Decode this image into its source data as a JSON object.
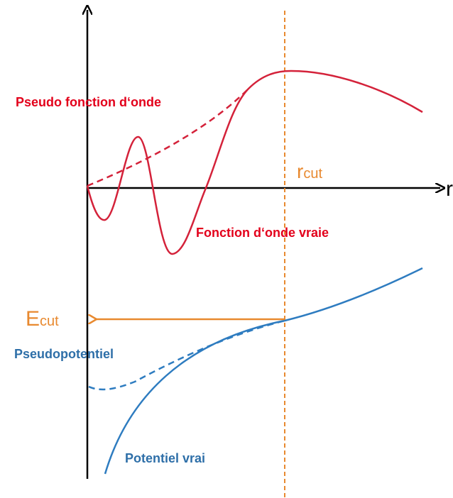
{
  "labels": {
    "pseudo_wave": "Pseudo fonction d‘onde",
    "true_wave": "Fonction d‘onde vraie",
    "r_cut": {
      "main": "r",
      "sub": "cut"
    },
    "e_cut": {
      "main": "E",
      "sub": "cut"
    },
    "pseudopotential": "Pseudopotentiel",
    "true_potential": "Potentiel vrai",
    "x_axis": "r"
  }
}
